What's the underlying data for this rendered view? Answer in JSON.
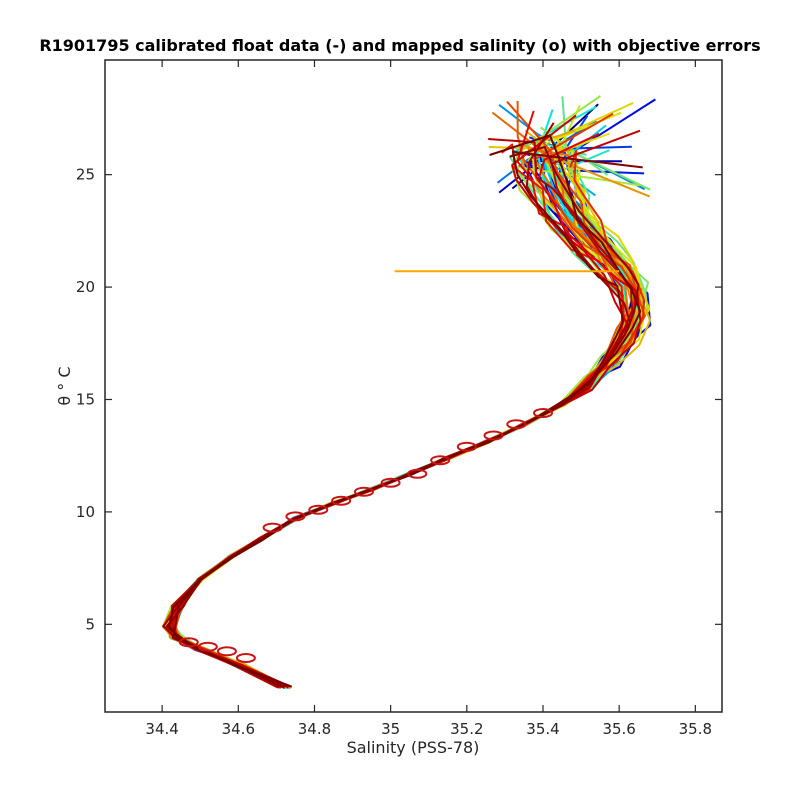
{
  "chart_data": {
    "type": "line",
    "title": "R1901795 calibrated float data (-) and mapped salinity (o) with objective errors",
    "xlabel": "Salinity (PSS-78)",
    "ylabel": "θ ° C",
    "xlim": [
      34.25,
      35.87
    ],
    "ylim": [
      1.1,
      30.1
    ],
    "xticks": [
      34.4,
      34.6,
      34.8,
      35,
      35.2,
      35.4,
      35.6,
      35.8
    ],
    "xtick_labels": [
      "34.4",
      "34.6",
      "34.8",
      "35",
      "35.2",
      "35.4",
      "35.6",
      "35.8"
    ],
    "yticks": [
      5,
      10,
      15,
      20,
      25
    ],
    "ytick_labels": [
      "5",
      "10",
      "15",
      "20",
      "25"
    ],
    "grid": false,
    "legend": "none",
    "colormap": "jet",
    "mean_profile": {
      "salinity": [
        34.72,
        34.6,
        34.5,
        34.44,
        34.42,
        34.44,
        34.5,
        34.58,
        34.66,
        34.75,
        34.85,
        34.95,
        35.05,
        35.15,
        35.25,
        35.35,
        35.45,
        35.52,
        35.57,
        35.61,
        35.63,
        35.62,
        35.58,
        35.52,
        35.46,
        35.42,
        35.38,
        35.36
      ],
      "theta": [
        2.2,
        3.2,
        3.9,
        4.4,
        4.9,
        5.8,
        7.0,
        8.0,
        8.8,
        9.7,
        10.4,
        11.0,
        11.7,
        12.4,
        13.1,
        13.9,
        14.8,
        15.8,
        16.8,
        17.8,
        18.8,
        19.8,
        20.8,
        21.8,
        22.8,
        23.9,
        24.9,
        26.0
      ]
    },
    "mapped_points": {
      "salinity": [
        34.47,
        34.52,
        34.57,
        34.62,
        34.69,
        34.75,
        34.81,
        34.87,
        34.93,
        35.0,
        35.07,
        35.13,
        35.2,
        35.27,
        35.33,
        35.4
      ],
      "theta": [
        4.2,
        4.0,
        3.8,
        3.5,
        9.3,
        9.8,
        10.1,
        10.5,
        10.9,
        11.3,
        11.7,
        12.3,
        12.9,
        13.4,
        13.9,
        14.4
      ]
    },
    "highlighted_profile": {
      "salinity": [
        35.01,
        35.3,
        35.6
      ],
      "theta": [
        20.7,
        20.7,
        20.7
      ]
    },
    "series_count": 60,
    "series_color_start": "#0000c8",
    "series_color_end": "#a00000",
    "mapped_marker_color": "#c81414"
  }
}
